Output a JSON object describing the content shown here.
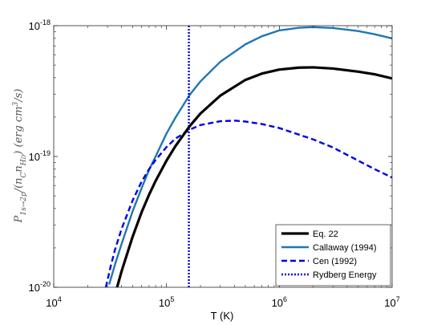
{
  "chart_data": {
    "type": "line",
    "xscale": "log",
    "yscale": "log",
    "xlim": [
      10000,
      10000000
    ],
    "ylim": [
      1e-20,
      1e-18
    ],
    "xlabel": "T (K)",
    "ylabel": "P_{1s→2p}/(n_C n_{H_D}) (erg cm^3/s)",
    "x_ticks": [
      {
        "value": 10000,
        "base": "10",
        "exp": "4"
      },
      {
        "value": 100000,
        "base": "10",
        "exp": "5"
      },
      {
        "value": 1000000,
        "base": "10",
        "exp": "6"
      },
      {
        "value": 10000000,
        "base": "10",
        "exp": "7"
      }
    ],
    "y_ticks": [
      {
        "value": 1e-20,
        "base": "10",
        "exp": "-20"
      },
      {
        "value": 1e-19,
        "base": "10",
        "exp": "-19"
      },
      {
        "value": 1e-18,
        "base": "10",
        "exp": "-18"
      }
    ],
    "legend_position": "bottom-right",
    "series": [
      {
        "name": "Eq. 22",
        "color": "#000000",
        "style": "solid",
        "width": 3.2,
        "x": [
          36000,
          40000,
          50000,
          60000,
          70000,
          80000,
          100000,
          120000,
          160000,
          200000,
          300000,
          500000,
          700000,
          1000000,
          1500000,
          2000000,
          3000000,
          5000000,
          7000000,
          10000000
        ],
        "y": [
          9.6e-21,
          1.33e-20,
          2.43e-20,
          3.73e-20,
          5.1e-20,
          6.5e-20,
          9.3e-20,
          1.2e-19,
          1.7e-19,
          2.13e-19,
          2.92e-19,
          3.85e-19,
          4.3e-19,
          4.62e-19,
          4.78e-19,
          4.8e-19,
          4.7e-19,
          4.45e-19,
          4.25e-19,
          3.95e-19
        ]
      },
      {
        "name": "Callaway (1994)",
        "color": "#1f77b4",
        "style": "solid",
        "width": 2.4,
        "x": [
          31000,
          35000,
          40000,
          50000,
          60000,
          70000,
          80000,
          100000,
          120000,
          160000,
          200000,
          300000,
          500000,
          700000,
          1000000,
          1500000,
          2000000,
          3000000,
          5000000,
          7000000,
          10000000
        ],
        "y": [
          1.05e-20,
          1.5e-20,
          2.15e-20,
          3.8e-20,
          5.7e-20,
          7.9e-20,
          1e-19,
          1.5e-19,
          1.98e-19,
          2.95e-19,
          3.75e-19,
          5.3e-19,
          7.2e-19,
          8.3e-19,
          9.2e-19,
          9.65e-19,
          9.75e-19,
          9.6e-19,
          9.1e-19,
          8.6e-19,
          8e-19
        ]
      },
      {
        "name": "Cen (1992)",
        "color": "#0000e6",
        "style": "dashed",
        "width": 2.4,
        "x": [
          29000,
          32000,
          35000,
          40000,
          50000,
          60000,
          70000,
          80000,
          100000,
          120000,
          160000,
          200000,
          300000,
          400000,
          500000,
          700000,
          1000000,
          2000000,
          3000000,
          5000000,
          7000000,
          10000000
        ],
        "y": [
          1e-20,
          1.45e-20,
          1.95e-20,
          2.8e-20,
          4.6e-20,
          6.4e-20,
          8e-20,
          9.4e-20,
          1.18e-19,
          1.37e-19,
          1.6e-19,
          1.74e-19,
          1.86e-19,
          1.88e-19,
          1.85e-19,
          1.77e-19,
          1.65e-19,
          1.35e-19,
          1.17e-19,
          9.3e-20,
          8e-20,
          6.9e-20
        ]
      },
      {
        "name": "Rydberg Energy",
        "color": "#0000e6",
        "style": "dotted",
        "width": 2.4,
        "x": [
          157800,
          157800
        ],
        "y": [
          1e-20,
          1e-18
        ]
      }
    ]
  }
}
